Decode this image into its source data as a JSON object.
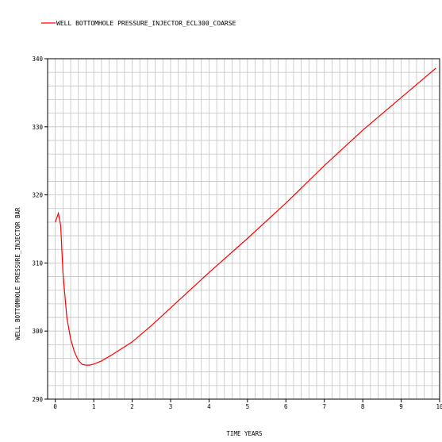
{
  "chart_data": {
    "type": "line",
    "series": [
      {
        "name": "WELL BOTTOMHOLE PRESSURE_INJECTOR_ECL300_COARSE",
        "color": "#ff0000",
        "x": [
          0.0,
          0.08,
          0.14,
          0.2,
          0.3,
          0.4,
          0.5,
          0.6,
          0.7,
          0.8,
          0.9,
          1.0,
          1.2,
          1.5,
          2.0,
          2.5,
          3.0,
          4.0,
          5.0,
          6.0,
          7.0,
          8.0,
          9.0,
          9.9
        ],
        "y": [
          316.0,
          317.3,
          315.5,
          308.5,
          302.0,
          298.8,
          296.9,
          295.7,
          295.1,
          295.0,
          295.0,
          295.15,
          295.6,
          296.6,
          298.4,
          300.8,
          303.4,
          308.6,
          313.6,
          318.8,
          324.3,
          329.5,
          334.3,
          338.6
        ]
      }
    ],
    "xlabel": "TIME YEARS",
    "ylabel": "WELL BOTTOMHOLE PRESSURE_INJECTOR BAR",
    "xlim": [
      -0.2,
      10
    ],
    "ylim": [
      290,
      340
    ],
    "xticks": [
      "0",
      "1",
      "2",
      "3",
      "4",
      "5",
      "6",
      "7",
      "8",
      "9",
      "10"
    ],
    "yticks": [
      "290",
      "300",
      "310",
      "320",
      "330",
      "340"
    ],
    "xminor": 0.2,
    "yminor": 2,
    "grid": true,
    "legend_position": "top-left"
  }
}
